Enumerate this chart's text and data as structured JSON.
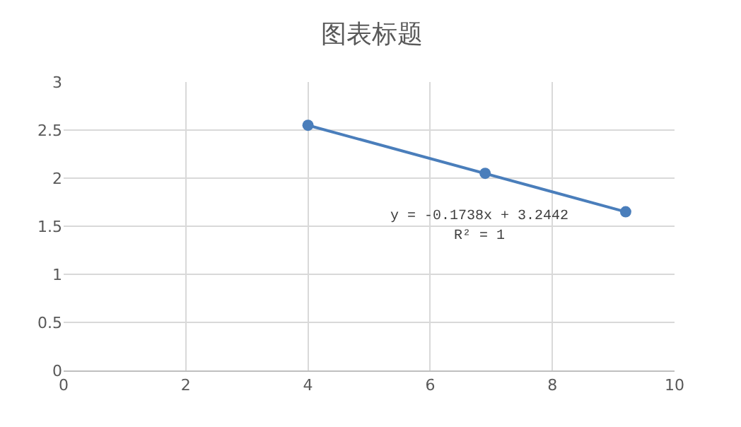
{
  "chart_data": {
    "type": "scatter",
    "title": "图表标题",
    "series": [
      {
        "color": "#4a7ebb",
        "marker": "circle",
        "x": [
          4,
          6.9,
          9.2
        ],
        "values": [
          2.55,
          2.05,
          1.65
        ]
      },
      {
        "type": "line",
        "color": "#4a7ebb",
        "x": [
          4,
          9.2
        ],
        "values": [
          2.55,
          1.65
        ]
      }
    ],
    "annotations": [
      "y = -0.1738x + 3.2442",
      "R² = 1"
    ],
    "xlim": [
      0,
      10
    ],
    "xticks": [
      0,
      2,
      4,
      6,
      8,
      10
    ],
    "ylim": [
      0,
      3
    ],
    "yticks": [
      0,
      0.5,
      1,
      1.5,
      2,
      2.5,
      3
    ],
    "grid": true
  }
}
